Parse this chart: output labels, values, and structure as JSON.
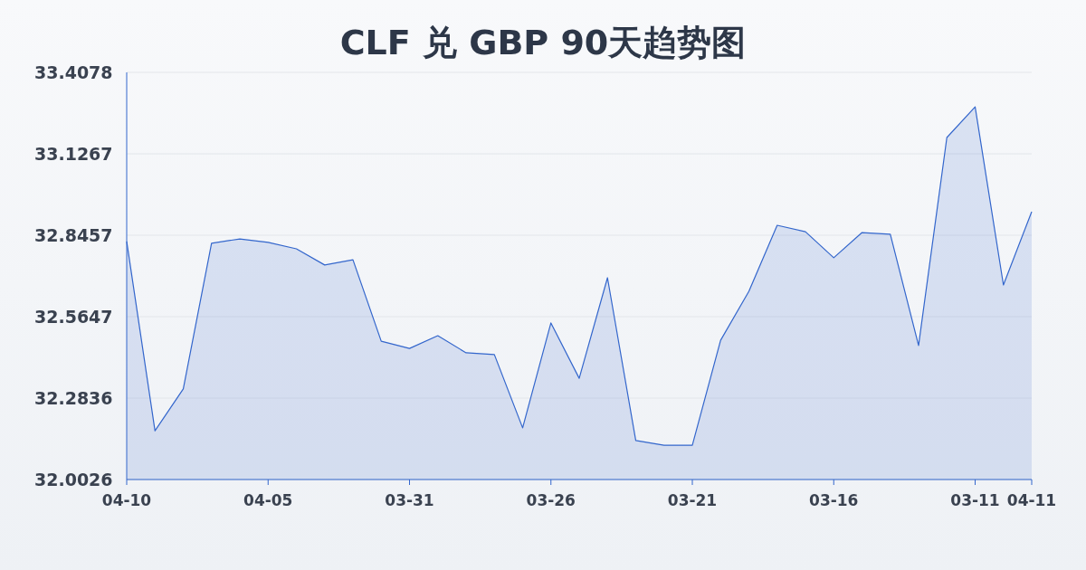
{
  "chart_data": {
    "type": "area",
    "title": "CLF 兑 GBP 90天趋势图",
    "categories": [
      "04-10",
      null,
      null,
      null,
      null,
      "04-05",
      null,
      null,
      null,
      null,
      "03-31",
      null,
      null,
      null,
      null,
      "03-26",
      null,
      null,
      null,
      null,
      "03-21",
      null,
      null,
      null,
      null,
      "03-16",
      null,
      null,
      null,
      null,
      "03-11",
      null,
      "04-11"
    ],
    "series": [
      {
        "color": "#3366cc",
        "values": [
          32.824,
          32.171,
          32.315,
          32.818,
          32.833,
          32.821,
          32.799,
          32.743,
          32.761,
          32.48,
          32.455,
          32.499,
          32.44,
          32.434,
          32.181,
          32.543,
          32.352,
          32.699,
          32.137,
          32.121,
          32.121,
          32.483,
          32.652,
          32.88,
          32.858,
          32.768,
          32.855,
          32.849,
          32.465,
          33.183,
          33.289,
          32.674,
          32.927
        ]
      }
    ],
    "ylim": [
      32.0026,
      33.4078
    ],
    "yticks": [
      32.0026,
      32.2836,
      32.5647,
      32.8457,
      33.1267,
      33.4078
    ],
    "grid": "y",
    "marker": "none"
  }
}
